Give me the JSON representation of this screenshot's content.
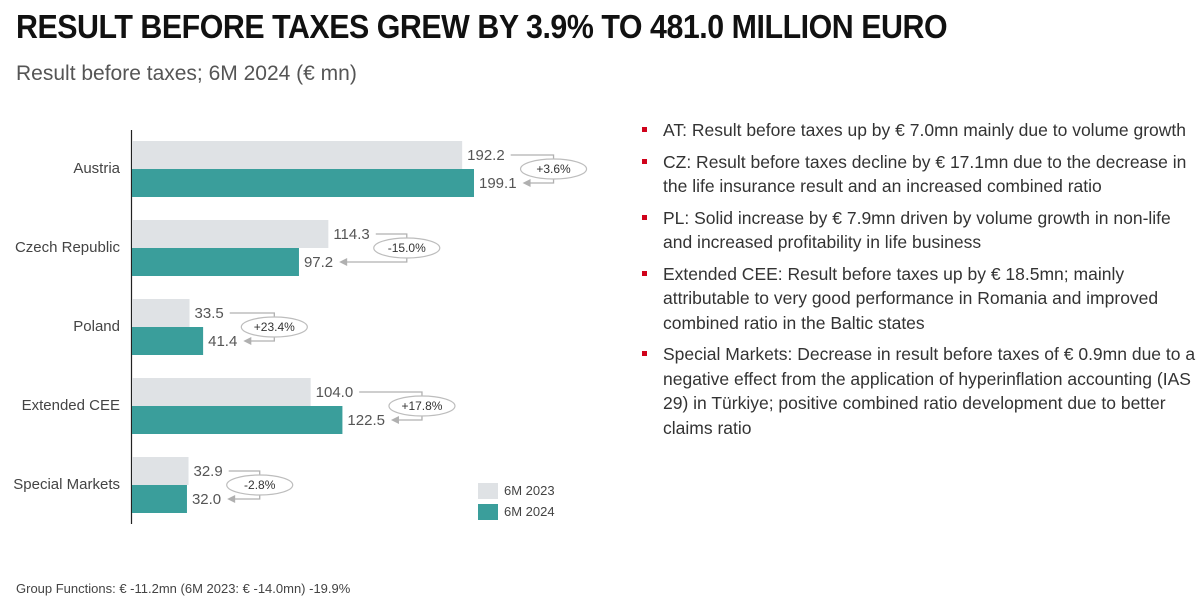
{
  "title": "RESULT BEFORE TAXES GREW BY 3.9% TO 481.0 MILLION EURO",
  "subtitle": "Result before taxes; 6M 2024 (€ mn)",
  "chart_data": {
    "type": "bar",
    "orientation": "horizontal",
    "categories": [
      "Austria",
      "Czech Republic",
      "Poland",
      "Extended CEE",
      "Special Markets"
    ],
    "series": [
      {
        "name": "6M 2023",
        "color": "#dfe2e5",
        "values": [
          192.2,
          114.3,
          33.5,
          104.0,
          32.9
        ],
        "labels": [
          "192.2",
          "114.3",
          "33.5",
          "104.0",
          "32.9"
        ]
      },
      {
        "name": "6M 2024",
        "color": "#3a9e9b",
        "values": [
          199.1,
          97.2,
          41.4,
          122.5,
          32.0
        ],
        "labels": [
          "199.1",
          "97.2",
          "41.4",
          "122.5",
          "32.0"
        ]
      }
    ],
    "changes": [
      "+3.6%",
      "-15.0%",
      "+23.4%",
      "+17.8%",
      "-2.8%"
    ],
    "xlim": [
      0,
      220
    ],
    "grid": false,
    "legend_position": "bottom-right"
  },
  "bullets": [
    "AT: Result before taxes up by € 7.0mn mainly due to volume growth",
    "CZ: Result before taxes decline by € 17.1mn due to the decrease in the life insurance result and an increased combined ratio",
    "PL: Solid increase by € 7.9mn driven by volume growth in non-life and increased profitability in life business",
    "Extended CEE: Result before taxes up by € 18.5mn; mainly attributable to very good performance in Romania and improved combined ratio in the Baltic states",
    "Special Markets: Decrease in result before taxes of € 0.9mn due to a negative effect from the application of hyperinflation accounting (IAS 29) in Türkiye; positive combined ratio development due to better claims ratio"
  ],
  "footnote": "Group Functions: € -11.2mn (6M 2023: € -14.0mn) -19.9%",
  "colors": {
    "accent": "#d0021b",
    "bar_2024": "#3a9e9b",
    "bar_2023": "#dfe2e5"
  }
}
